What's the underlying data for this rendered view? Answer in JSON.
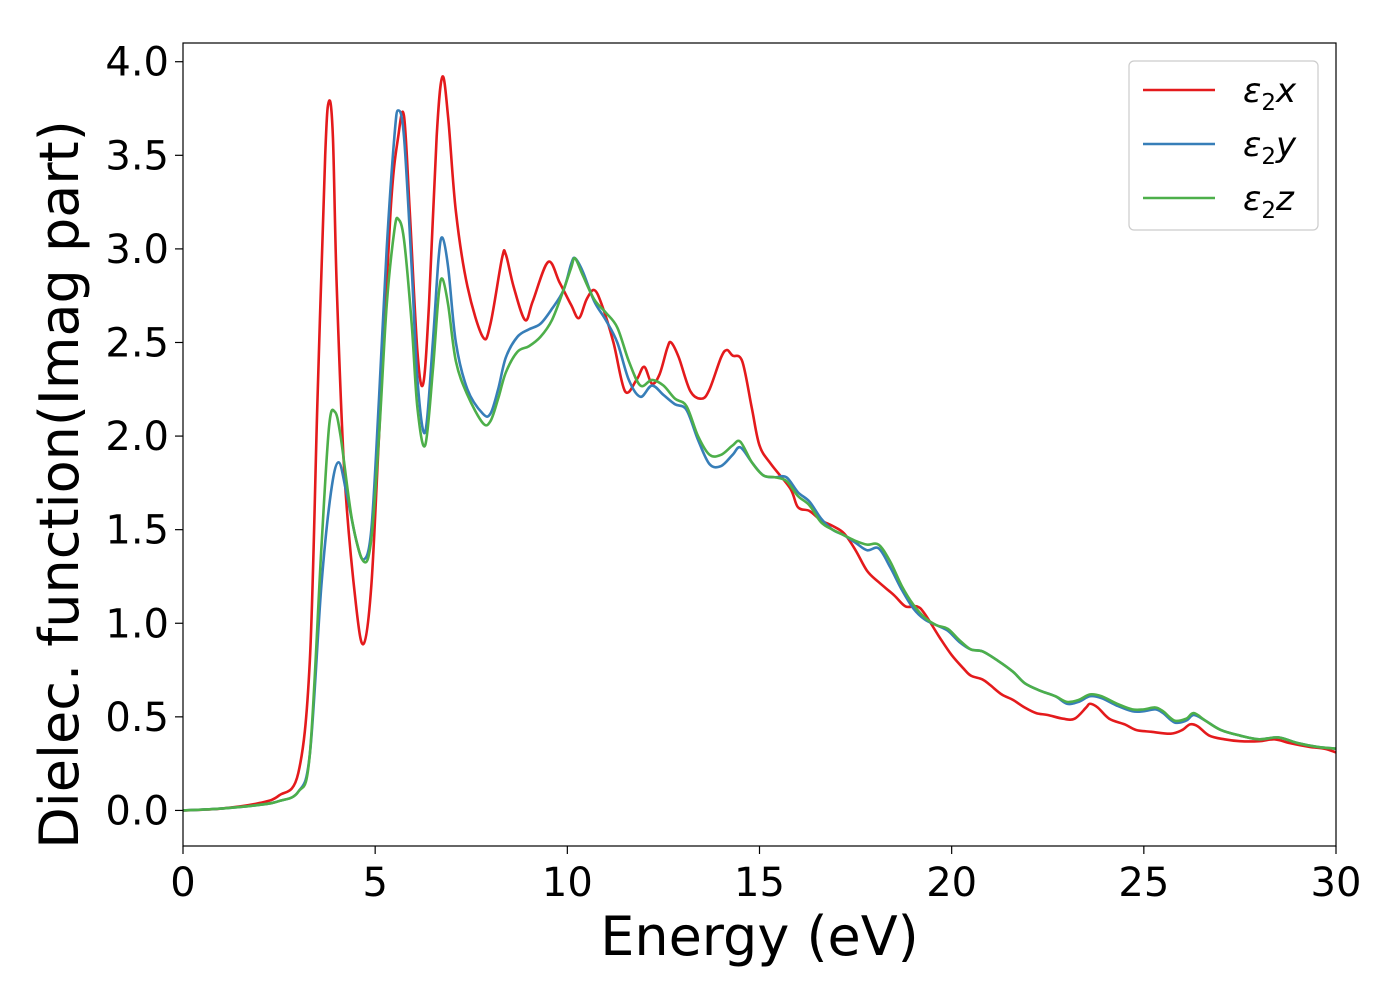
{
  "chart_data": {
    "type": "line",
    "xlabel": "Energy (eV)",
    "ylabel": "Dielec. function(Imag part)",
    "xlim": [
      0,
      30
    ],
    "ylim": [
      -0.19,
      4.1
    ],
    "xticks": [
      0,
      5,
      10,
      15,
      20,
      25,
      30
    ],
    "xtick_labels": [
      "0",
      "5",
      "10",
      "15",
      "20",
      "25",
      "30"
    ],
    "yticks": [
      0.0,
      0.5,
      1.0,
      1.5,
      2.0,
      2.5,
      3.0,
      3.5,
      4.0
    ],
    "ytick_labels": [
      "0.0",
      "0.5",
      "1.0",
      "1.5",
      "2.0",
      "2.5",
      "3.0",
      "3.5",
      "4.0"
    ],
    "grid": false,
    "legend_position": "top-right",
    "series": [
      {
        "name": "ε2x",
        "name_base": "ε",
        "name_sub": "2",
        "name_tail": "x",
        "color": "#e41a1c",
        "points": [
          [
            0,
            0
          ],
          [
            1,
            0.01
          ],
          [
            2,
            0.04
          ],
          [
            2.5,
            0.08
          ],
          [
            3,
            0.2
          ],
          [
            3.3,
            0.8
          ],
          [
            3.5,
            2.2
          ],
          [
            3.7,
            3.5
          ],
          [
            3.8,
            3.79
          ],
          [
            3.9,
            3.6
          ],
          [
            4,
            2.8
          ],
          [
            4.2,
            1.8
          ],
          [
            4.5,
            1.1
          ],
          [
            4.7,
            0.89
          ],
          [
            4.9,
            1.2
          ],
          [
            5.1,
            2.0
          ],
          [
            5.4,
            3.2
          ],
          [
            5.6,
            3.6
          ],
          [
            5.75,
            3.71
          ],
          [
            5.9,
            3.2
          ],
          [
            6.1,
            2.45
          ],
          [
            6.25,
            2.28
          ],
          [
            6.4,
            2.7
          ],
          [
            6.6,
            3.6
          ],
          [
            6.75,
            3.92
          ],
          [
            6.9,
            3.7
          ],
          [
            7.1,
            3.2
          ],
          [
            7.4,
            2.8
          ],
          [
            7.8,
            2.53
          ],
          [
            8.0,
            2.6
          ],
          [
            8.3,
            2.95
          ],
          [
            8.4,
            2.97
          ],
          [
            8.6,
            2.8
          ],
          [
            8.9,
            2.62
          ],
          [
            9.1,
            2.72
          ],
          [
            9.5,
            2.93
          ],
          [
            9.8,
            2.82
          ],
          [
            10.1,
            2.7
          ],
          [
            10.3,
            2.63
          ],
          [
            10.5,
            2.73
          ],
          [
            10.7,
            2.78
          ],
          [
            10.9,
            2.7
          ],
          [
            11.2,
            2.5
          ],
          [
            11.5,
            2.24
          ],
          [
            11.8,
            2.3
          ],
          [
            12.0,
            2.37
          ],
          [
            12.2,
            2.28
          ],
          [
            12.4,
            2.33
          ],
          [
            12.6,
            2.47
          ],
          [
            12.7,
            2.5
          ],
          [
            12.9,
            2.42
          ],
          [
            13.2,
            2.24
          ],
          [
            13.5,
            2.2
          ],
          [
            13.7,
            2.25
          ],
          [
            14.0,
            2.42
          ],
          [
            14.15,
            2.46
          ],
          [
            14.3,
            2.43
          ],
          [
            14.55,
            2.4
          ],
          [
            14.8,
            2.15
          ],
          [
            15.0,
            1.95
          ],
          [
            15.3,
            1.85
          ],
          [
            15.8,
            1.72
          ],
          [
            16.0,
            1.62
          ],
          [
            16.3,
            1.6
          ],
          [
            16.6,
            1.55
          ],
          [
            16.9,
            1.52
          ],
          [
            17.2,
            1.48
          ],
          [
            17.5,
            1.39
          ],
          [
            17.8,
            1.28
          ],
          [
            18.1,
            1.22
          ],
          [
            18.5,
            1.15
          ],
          [
            18.8,
            1.09
          ],
          [
            19.1,
            1.09
          ],
          [
            19.3,
            1.05
          ],
          [
            19.7,
            0.92
          ],
          [
            20.0,
            0.83
          ],
          [
            20.3,
            0.76
          ],
          [
            20.5,
            0.72
          ],
          [
            20.8,
            0.7
          ],
          [
            21.0,
            0.67
          ],
          [
            21.3,
            0.62
          ],
          [
            21.6,
            0.59
          ],
          [
            21.9,
            0.55
          ],
          [
            22.2,
            0.52
          ],
          [
            22.5,
            0.51
          ],
          [
            22.9,
            0.49
          ],
          [
            23.2,
            0.49
          ],
          [
            23.5,
            0.55
          ],
          [
            23.6,
            0.57
          ],
          [
            23.8,
            0.55
          ],
          [
            24.1,
            0.49
          ],
          [
            24.5,
            0.46
          ],
          [
            24.8,
            0.43
          ],
          [
            25.2,
            0.42
          ],
          [
            25.7,
            0.41
          ],
          [
            26.0,
            0.43
          ],
          [
            26.2,
            0.46
          ],
          [
            26.4,
            0.45
          ],
          [
            26.7,
            0.4
          ],
          [
            27.1,
            0.38
          ],
          [
            27.5,
            0.37
          ],
          [
            28.0,
            0.37
          ],
          [
            28.4,
            0.38
          ],
          [
            28.8,
            0.36
          ],
          [
            29.3,
            0.34
          ],
          [
            29.7,
            0.33
          ],
          [
            30,
            0.31
          ]
        ]
      },
      {
        "name": "ε2y",
        "name_base": "ε",
        "name_sub": "2",
        "name_tail": "y",
        "color": "#377eb8",
        "points": [
          [
            0,
            0
          ],
          [
            1,
            0.01
          ],
          [
            2,
            0.03
          ],
          [
            2.5,
            0.05
          ],
          [
            3,
            0.1
          ],
          [
            3.3,
            0.3
          ],
          [
            3.6,
            1.2
          ],
          [
            3.85,
            1.7
          ],
          [
            4.05,
            1.86
          ],
          [
            4.25,
            1.7
          ],
          [
            4.5,
            1.45
          ],
          [
            4.7,
            1.34
          ],
          [
            4.9,
            1.5
          ],
          [
            5.1,
            2.2
          ],
          [
            5.3,
            3.0
          ],
          [
            5.5,
            3.6
          ],
          [
            5.6,
            3.74
          ],
          [
            5.75,
            3.6
          ],
          [
            5.95,
            2.9
          ],
          [
            6.1,
            2.3
          ],
          [
            6.3,
            2.02
          ],
          [
            6.5,
            2.5
          ],
          [
            6.65,
            2.95
          ],
          [
            6.75,
            3.06
          ],
          [
            6.9,
            2.9
          ],
          [
            7.1,
            2.5
          ],
          [
            7.4,
            2.25
          ],
          [
            7.8,
            2.12
          ],
          [
            8.0,
            2.12
          ],
          [
            8.2,
            2.25
          ],
          [
            8.4,
            2.42
          ],
          [
            8.7,
            2.53
          ],
          [
            9.0,
            2.57
          ],
          [
            9.3,
            2.6
          ],
          [
            9.6,
            2.68
          ],
          [
            9.9,
            2.78
          ],
          [
            10.1,
            2.92
          ],
          [
            10.2,
            2.95
          ],
          [
            10.4,
            2.88
          ],
          [
            10.7,
            2.72
          ],
          [
            11.0,
            2.62
          ],
          [
            11.3,
            2.5
          ],
          [
            11.6,
            2.3
          ],
          [
            11.9,
            2.21
          ],
          [
            12.2,
            2.27
          ],
          [
            12.5,
            2.22
          ],
          [
            12.8,
            2.17
          ],
          [
            13.1,
            2.14
          ],
          [
            13.4,
            1.98
          ],
          [
            13.7,
            1.85
          ],
          [
            14.0,
            1.84
          ],
          [
            14.3,
            1.9
          ],
          [
            14.5,
            1.94
          ],
          [
            14.8,
            1.86
          ],
          [
            15.1,
            1.79
          ],
          [
            15.4,
            1.78
          ],
          [
            15.7,
            1.78
          ],
          [
            16.0,
            1.7
          ],
          [
            16.3,
            1.65
          ],
          [
            16.6,
            1.56
          ],
          [
            16.9,
            1.5
          ],
          [
            17.2,
            1.47
          ],
          [
            17.5,
            1.43
          ],
          [
            17.8,
            1.39
          ],
          [
            18.1,
            1.4
          ],
          [
            18.4,
            1.3
          ],
          [
            18.7,
            1.18
          ],
          [
            19.0,
            1.08
          ],
          [
            19.3,
            1.02
          ],
          [
            19.6,
            0.99
          ],
          [
            19.9,
            0.96
          ],
          [
            20.2,
            0.9
          ],
          [
            20.5,
            0.86
          ],
          [
            20.8,
            0.85
          ],
          [
            21.2,
            0.8
          ],
          [
            21.6,
            0.74
          ],
          [
            21.9,
            0.68
          ],
          [
            22.3,
            0.64
          ],
          [
            22.7,
            0.61
          ],
          [
            23.0,
            0.57
          ],
          [
            23.3,
            0.58
          ],
          [
            23.6,
            0.61
          ],
          [
            23.9,
            0.6
          ],
          [
            24.3,
            0.56
          ],
          [
            24.7,
            0.53
          ],
          [
            25.0,
            0.53
          ],
          [
            25.3,
            0.54
          ],
          [
            25.5,
            0.52
          ],
          [
            25.8,
            0.47
          ],
          [
            26.1,
            0.48
          ],
          [
            26.3,
            0.51
          ],
          [
            26.6,
            0.48
          ],
          [
            27.0,
            0.43
          ],
          [
            27.5,
            0.4
          ],
          [
            28.0,
            0.38
          ],
          [
            28.5,
            0.39
          ],
          [
            29.0,
            0.36
          ],
          [
            29.5,
            0.34
          ],
          [
            30,
            0.33
          ]
        ]
      },
      {
        "name": "ε2z",
        "name_base": "ε",
        "name_sub": "2",
        "name_tail": "z",
        "color": "#4daf4a",
        "points": [
          [
            0,
            0
          ],
          [
            1,
            0.01
          ],
          [
            2,
            0.03
          ],
          [
            2.5,
            0.05
          ],
          [
            3,
            0.1
          ],
          [
            3.3,
            0.3
          ],
          [
            3.6,
            1.4
          ],
          [
            3.8,
            2.05
          ],
          [
            3.95,
            2.13
          ],
          [
            4.1,
            2.0
          ],
          [
            4.4,
            1.55
          ],
          [
            4.7,
            1.33
          ],
          [
            4.9,
            1.45
          ],
          [
            5.1,
            2.0
          ],
          [
            5.3,
            2.7
          ],
          [
            5.5,
            3.1
          ],
          [
            5.6,
            3.16
          ],
          [
            5.75,
            3.05
          ],
          [
            5.95,
            2.6
          ],
          [
            6.1,
            2.15
          ],
          [
            6.3,
            1.95
          ],
          [
            6.5,
            2.35
          ],
          [
            6.65,
            2.75
          ],
          [
            6.75,
            2.84
          ],
          [
            6.9,
            2.7
          ],
          [
            7.1,
            2.4
          ],
          [
            7.4,
            2.22
          ],
          [
            7.8,
            2.07
          ],
          [
            8.0,
            2.08
          ],
          [
            8.2,
            2.2
          ],
          [
            8.4,
            2.34
          ],
          [
            8.7,
            2.45
          ],
          [
            9.0,
            2.48
          ],
          [
            9.3,
            2.53
          ],
          [
            9.6,
            2.62
          ],
          [
            9.9,
            2.78
          ],
          [
            10.1,
            2.9
          ],
          [
            10.2,
            2.95
          ],
          [
            10.4,
            2.86
          ],
          [
            10.7,
            2.73
          ],
          [
            11.0,
            2.66
          ],
          [
            11.3,
            2.58
          ],
          [
            11.6,
            2.4
          ],
          [
            11.9,
            2.27
          ],
          [
            12.2,
            2.3
          ],
          [
            12.5,
            2.27
          ],
          [
            12.8,
            2.2
          ],
          [
            13.1,
            2.16
          ],
          [
            13.4,
            2.0
          ],
          [
            13.7,
            1.9
          ],
          [
            14.0,
            1.9
          ],
          [
            14.3,
            1.95
          ],
          [
            14.5,
            1.97
          ],
          [
            14.8,
            1.86
          ],
          [
            15.1,
            1.79
          ],
          [
            15.4,
            1.78
          ],
          [
            15.7,
            1.76
          ],
          [
            16.0,
            1.68
          ],
          [
            16.3,
            1.63
          ],
          [
            16.6,
            1.54
          ],
          [
            16.9,
            1.5
          ],
          [
            17.2,
            1.47
          ],
          [
            17.5,
            1.44
          ],
          [
            17.8,
            1.42
          ],
          [
            18.1,
            1.42
          ],
          [
            18.4,
            1.33
          ],
          [
            18.7,
            1.2
          ],
          [
            19.0,
            1.1
          ],
          [
            19.3,
            1.03
          ],
          [
            19.6,
            0.99
          ],
          [
            19.9,
            0.97
          ],
          [
            20.2,
            0.91
          ],
          [
            20.5,
            0.86
          ],
          [
            20.8,
            0.85
          ],
          [
            21.2,
            0.8
          ],
          [
            21.6,
            0.74
          ],
          [
            21.9,
            0.68
          ],
          [
            22.3,
            0.64
          ],
          [
            22.7,
            0.61
          ],
          [
            23.0,
            0.58
          ],
          [
            23.3,
            0.59
          ],
          [
            23.6,
            0.62
          ],
          [
            23.9,
            0.61
          ],
          [
            24.3,
            0.57
          ],
          [
            24.7,
            0.54
          ],
          [
            25.0,
            0.54
          ],
          [
            25.3,
            0.55
          ],
          [
            25.5,
            0.53
          ],
          [
            25.8,
            0.48
          ],
          [
            26.1,
            0.49
          ],
          [
            26.3,
            0.52
          ],
          [
            26.6,
            0.48
          ],
          [
            27.0,
            0.43
          ],
          [
            27.5,
            0.4
          ],
          [
            28.0,
            0.38
          ],
          [
            28.5,
            0.39
          ],
          [
            29.0,
            0.36
          ],
          [
            29.5,
            0.34
          ],
          [
            30,
            0.33
          ]
        ]
      }
    ]
  }
}
